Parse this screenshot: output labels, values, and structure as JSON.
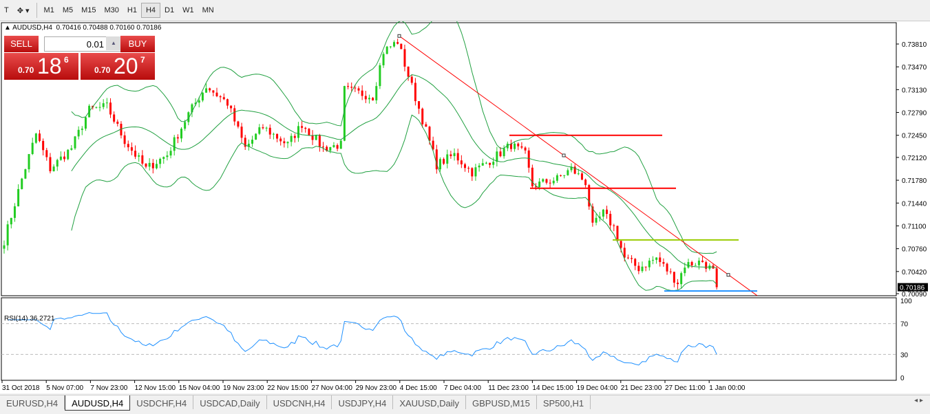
{
  "toolbar": {
    "timeframes": [
      "M1",
      "M5",
      "M15",
      "M30",
      "H1",
      "H4",
      "D1",
      "W1",
      "MN"
    ],
    "active": "H4"
  },
  "header": {
    "symbol": "AUDUSD,H4",
    "ohlc": "0.70416 0.70488 0.70160 0.70186"
  },
  "trade_panel": {
    "sell_label": "SELL",
    "buy_label": "BUY",
    "lots": "0.01",
    "sell_prefix": "0.70",
    "sell_big": "18",
    "sell_sup": "6",
    "buy_prefix": "0.70",
    "buy_big": "20",
    "buy_sup": "7"
  },
  "tabs": [
    "EURUSD,H4",
    "AUDUSD,H4",
    "USDCHF,H4",
    "USDCAD,Daily",
    "USDCNH,H4",
    "USDJPY,H4",
    "XAUUSD,Daily",
    "GBPUSD,M15",
    "SP500,H1"
  ],
  "active_tab": "AUDUSD,H4",
  "colors": {
    "bull": "#22cc22",
    "bear": "#ff0000",
    "bands": "#20a040",
    "rsi": "#1e90ff",
    "trendline": "#ff0000",
    "level_yellow": "#99cc00",
    "level_blue": "#1e90ff"
  },
  "chart_data": {
    "type": "candlestick",
    "symbol": "AUDUSD",
    "timeframe": "H4",
    "ylim": [
      0.7009,
      0.739
    ],
    "y_ticks": [
      "0.73810",
      "0.73470",
      "0.73130",
      "0.72790",
      "0.72450",
      "0.72120",
      "0.71780",
      "0.71440",
      "0.71100",
      "0.70760",
      "0.70420",
      "0.70090"
    ],
    "current_price": "0.70186",
    "x_ticks": [
      "31 Oct 2018",
      "5 Nov 07:00",
      "7 Nov 23:00",
      "12 Nov 15:00",
      "15 Nov 04:00",
      "19 Nov 23:00",
      "22 Nov 15:00",
      "27 Nov 04:00",
      "29 Nov 23:00",
      "4 Dec 15:00",
      "7 Dec 04:00",
      "11 Dec 23:00",
      "14 Dec 15:00",
      "19 Dec 04:00",
      "21 Dec 23:00",
      "27 Dec 11:00",
      "1 Jan 00:00"
    ],
    "close_anchors": [
      [
        0,
        0.7088
      ],
      [
        5,
        0.718
      ],
      [
        9,
        0.7247
      ],
      [
        13,
        0.7195
      ],
      [
        19,
        0.7226
      ],
      [
        24,
        0.7283
      ],
      [
        29,
        0.7288
      ],
      [
        34,
        0.7237
      ],
      [
        40,
        0.7195
      ],
      [
        46,
        0.7216
      ],
      [
        52,
        0.7277
      ],
      [
        57,
        0.7318
      ],
      [
        63,
        0.7293
      ],
      [
        68,
        0.7226
      ],
      [
        73,
        0.7257
      ],
      [
        80,
        0.7231
      ],
      [
        84,
        0.7262
      ],
      [
        90,
        0.7226
      ],
      [
        95,
        0.7231
      ],
      [
        96,
        0.7313
      ],
      [
        104,
        0.7303
      ],
      [
        107,
        0.737
      ],
      [
        111,
        0.7385
      ],
      [
        114,
        0.7334
      ],
      [
        119,
        0.7252
      ],
      [
        122,
        0.7201
      ],
      [
        127,
        0.7216
      ],
      [
        132,
        0.719
      ],
      [
        138,
        0.7211
      ],
      [
        143,
        0.7231
      ],
      [
        147,
        0.7216
      ],
      [
        149,
        0.717
      ],
      [
        156,
        0.718
      ],
      [
        160,
        0.7195
      ],
      [
        164,
        0.7175
      ],
      [
        166,
        0.7108
      ],
      [
        169,
        0.7129
      ],
      [
        172,
        0.7108
      ],
      [
        175,
        0.7062
      ],
      [
        179,
        0.7047
      ],
      [
        184,
        0.7062
      ],
      [
        190,
        0.7026
      ],
      [
        192,
        0.7052
      ],
      [
        197,
        0.7057
      ],
      [
        200,
        0.7042
      ],
      [
        201,
        0.70186
      ]
    ],
    "indicators": {
      "bollinger": {
        "period": 20,
        "deviation": 2
      },
      "rsi": {
        "label": "RSI(14) 36.2721",
        "period": 14,
        "levels": [
          70,
          30
        ],
        "ticks": [
          "100",
          "70",
          "30",
          "0"
        ]
      }
    },
    "trendline": {
      "from": 0.7393,
      "to": 0.7006
    },
    "levels": [
      {
        "price": 0.7245,
        "color": "#ff0000"
      },
      {
        "price": 0.7166,
        "color": "#ff0000"
      },
      {
        "price": 0.7089,
        "color": "#99cc00"
      },
      {
        "price": 0.7013,
        "color": "#1e90ff"
      }
    ]
  }
}
